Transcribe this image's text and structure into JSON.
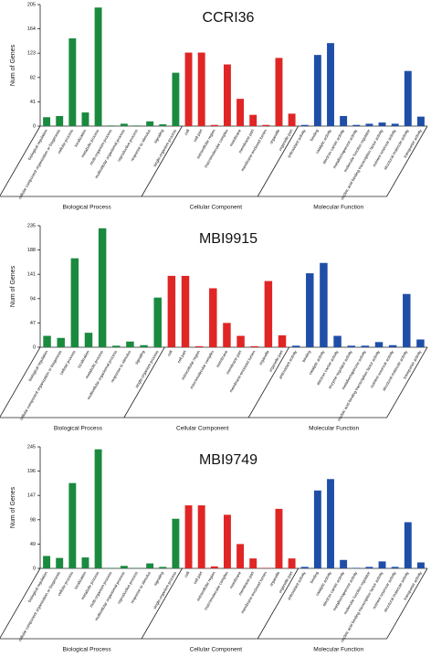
{
  "chart_data": [
    {
      "type": "bar",
      "title": "CCRI36",
      "ylabel": "Num of Genes",
      "ylim": [
        0,
        205
      ],
      "yticks": [
        0,
        41,
        82,
        123,
        164,
        205
      ],
      "series": [
        {
          "name": "Biological Process",
          "color": "#1a8a3e",
          "categories": [
            "biological regulation",
            "cellular component organization or biogenesis",
            "cellular process",
            "localization",
            "metabolic process",
            "multi-organism process",
            "multicellular organismal process",
            "reproductive process",
            "response to stimulus",
            "signaling",
            "single-organism process"
          ],
          "values": [
            15,
            17,
            148,
            23,
            200,
            1,
            4,
            1,
            8,
            3,
            90
          ]
        },
        {
          "name": "Cellular Component",
          "color": "#e02525",
          "categories": [
            "cell",
            "cell part",
            "extracellular region",
            "macromolecular complex",
            "membrane",
            "membrane part",
            "membrane-enclosed lumen",
            "organelle",
            "organelle part"
          ],
          "values": [
            124,
            124,
            2,
            104,
            46,
            19,
            2,
            115,
            21
          ]
        },
        {
          "name": "Molecular Function",
          "color": "#1f4ea8",
          "categories": [
            "antioxidant activity",
            "binding",
            "catalytic activity",
            "electron carrier activity",
            "metallochaperone activity",
            "molecular function regulator",
            "nucleic acid binding transcription factor activity",
            "nutrient reservoir activity",
            "structural molecule activity",
            "transporter activity"
          ],
          "values": [
            2,
            120,
            140,
            17,
            2,
            4,
            6,
            4,
            93,
            16
          ]
        }
      ]
    },
    {
      "type": "bar",
      "title": "MBI9915",
      "ylabel": "Num of Genes",
      "ylim": [
        0,
        235
      ],
      "yticks": [
        0,
        47,
        94,
        141,
        188,
        235
      ],
      "series": [
        {
          "name": "Biological Process",
          "color": "#1a8a3e",
          "categories": [
            "biological regulation",
            "cellular component organization or biogenesis",
            "cellular process",
            "localization",
            "metabolic process",
            "multicellular organismal process",
            "response to stimulus",
            "signaling",
            "single-organism process"
          ],
          "values": [
            22,
            18,
            172,
            28,
            230,
            3,
            11,
            4,
            96
          ]
        },
        {
          "name": "Cellular Component",
          "color": "#e02525",
          "categories": [
            "cell",
            "cell part",
            "extracellular region",
            "macromolecular complex",
            "membrane",
            "membrane part",
            "membrane-enclosed lumen",
            "organelle",
            "organelle part"
          ],
          "values": [
            138,
            138,
            2,
            114,
            47,
            22,
            2,
            128,
            23
          ]
        },
        {
          "name": "Molecular Function",
          "color": "#1f4ea8",
          "categories": [
            "antioxidant activity",
            "binding",
            "catalytic activity",
            "electron carrier activity",
            "enzyme regulator activity",
            "metallochaperone activity",
            "nucleic acid binding transcription factor activity",
            "nutrient reservoir activity",
            "structural molecule activity",
            "transporter activity"
          ],
          "values": [
            3,
            143,
            163,
            22,
            3,
            3,
            10,
            4,
            103,
            15
          ]
        }
      ]
    },
    {
      "type": "bar",
      "title": "MBI9749",
      "ylabel": "Num of Genes",
      "ylim": [
        0,
        245
      ],
      "yticks": [
        0,
        49,
        98,
        147,
        196,
        245
      ],
      "series": [
        {
          "name": "Biological Process",
          "color": "#1a8a3e",
          "categories": [
            "biological regulation",
            "cellular component organization or biogenesis",
            "cellular process",
            "localization",
            "metabolic process",
            "multi-organism process",
            "multicellular organismal process",
            "reproductive process",
            "response to stimulus",
            "signaling",
            "single-organism process"
          ],
          "values": [
            25,
            21,
            172,
            22,
            240,
            1,
            5,
            1,
            10,
            3,
            100
          ]
        },
        {
          "name": "Cellular Component",
          "color": "#e02525",
          "categories": [
            "cell",
            "cell part",
            "extracellular region",
            "macromolecular complex",
            "membrane",
            "membrane part",
            "membrane-enclosed lumen",
            "organelle",
            "organelle part"
          ],
          "values": [
            127,
            127,
            4,
            108,
            49,
            20,
            1,
            120,
            20
          ]
        },
        {
          "name": "Molecular Function",
          "color": "#1f4ea8",
          "categories": [
            "antioxidant activity",
            "binding",
            "catalytic activity",
            "electron carrier activity",
            "metallochaperone activity",
            "molecular function regulator",
            "nucleic acid binding transcription factor activity",
            "nutrient reservoir activity",
            "structural molecule activity",
            "transporter activity"
          ],
          "values": [
            3,
            157,
            180,
            17,
            1,
            3,
            14,
            3,
            93,
            12
          ]
        }
      ]
    }
  ]
}
